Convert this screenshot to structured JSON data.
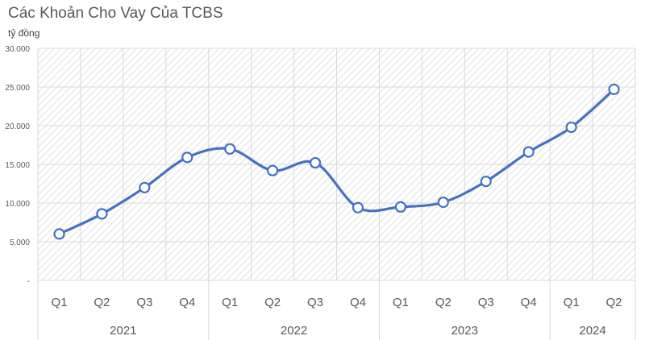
{
  "chart_data": {
    "type": "line",
    "title": "Các Khoản Cho Vay Của TCBS",
    "ylabel": "tỷ đồng",
    "xlabel": "",
    "ylim": [
      0,
      30000
    ],
    "yticks": [
      0,
      5000,
      10000,
      15000,
      20000,
      25000,
      30000
    ],
    "ytick_labels": [
      "-",
      "5.000",
      "10.000",
      "15.000",
      "20.000",
      "25.000",
      "30.000"
    ],
    "categories": [
      "Q1",
      "Q2",
      "Q3",
      "Q4",
      "Q1",
      "Q2",
      "Q3",
      "Q4",
      "Q1",
      "Q2",
      "Q3",
      "Q4",
      "Q1",
      "Q2"
    ],
    "groups": [
      {
        "label": "2021",
        "count": 4
      },
      {
        "label": "2022",
        "count": 4
      },
      {
        "label": "2023",
        "count": 4
      },
      {
        "label": "2024",
        "count": 2
      }
    ],
    "series": [
      {
        "name": "Các khoản cho vay",
        "color": "#4472C4",
        "values": [
          6000,
          8600,
          12000,
          15900,
          17000,
          14200,
          15200,
          9400,
          9500,
          10100,
          12800,
          16600,
          19800,
          24700
        ]
      }
    ],
    "grid": true,
    "smooth": true
  }
}
